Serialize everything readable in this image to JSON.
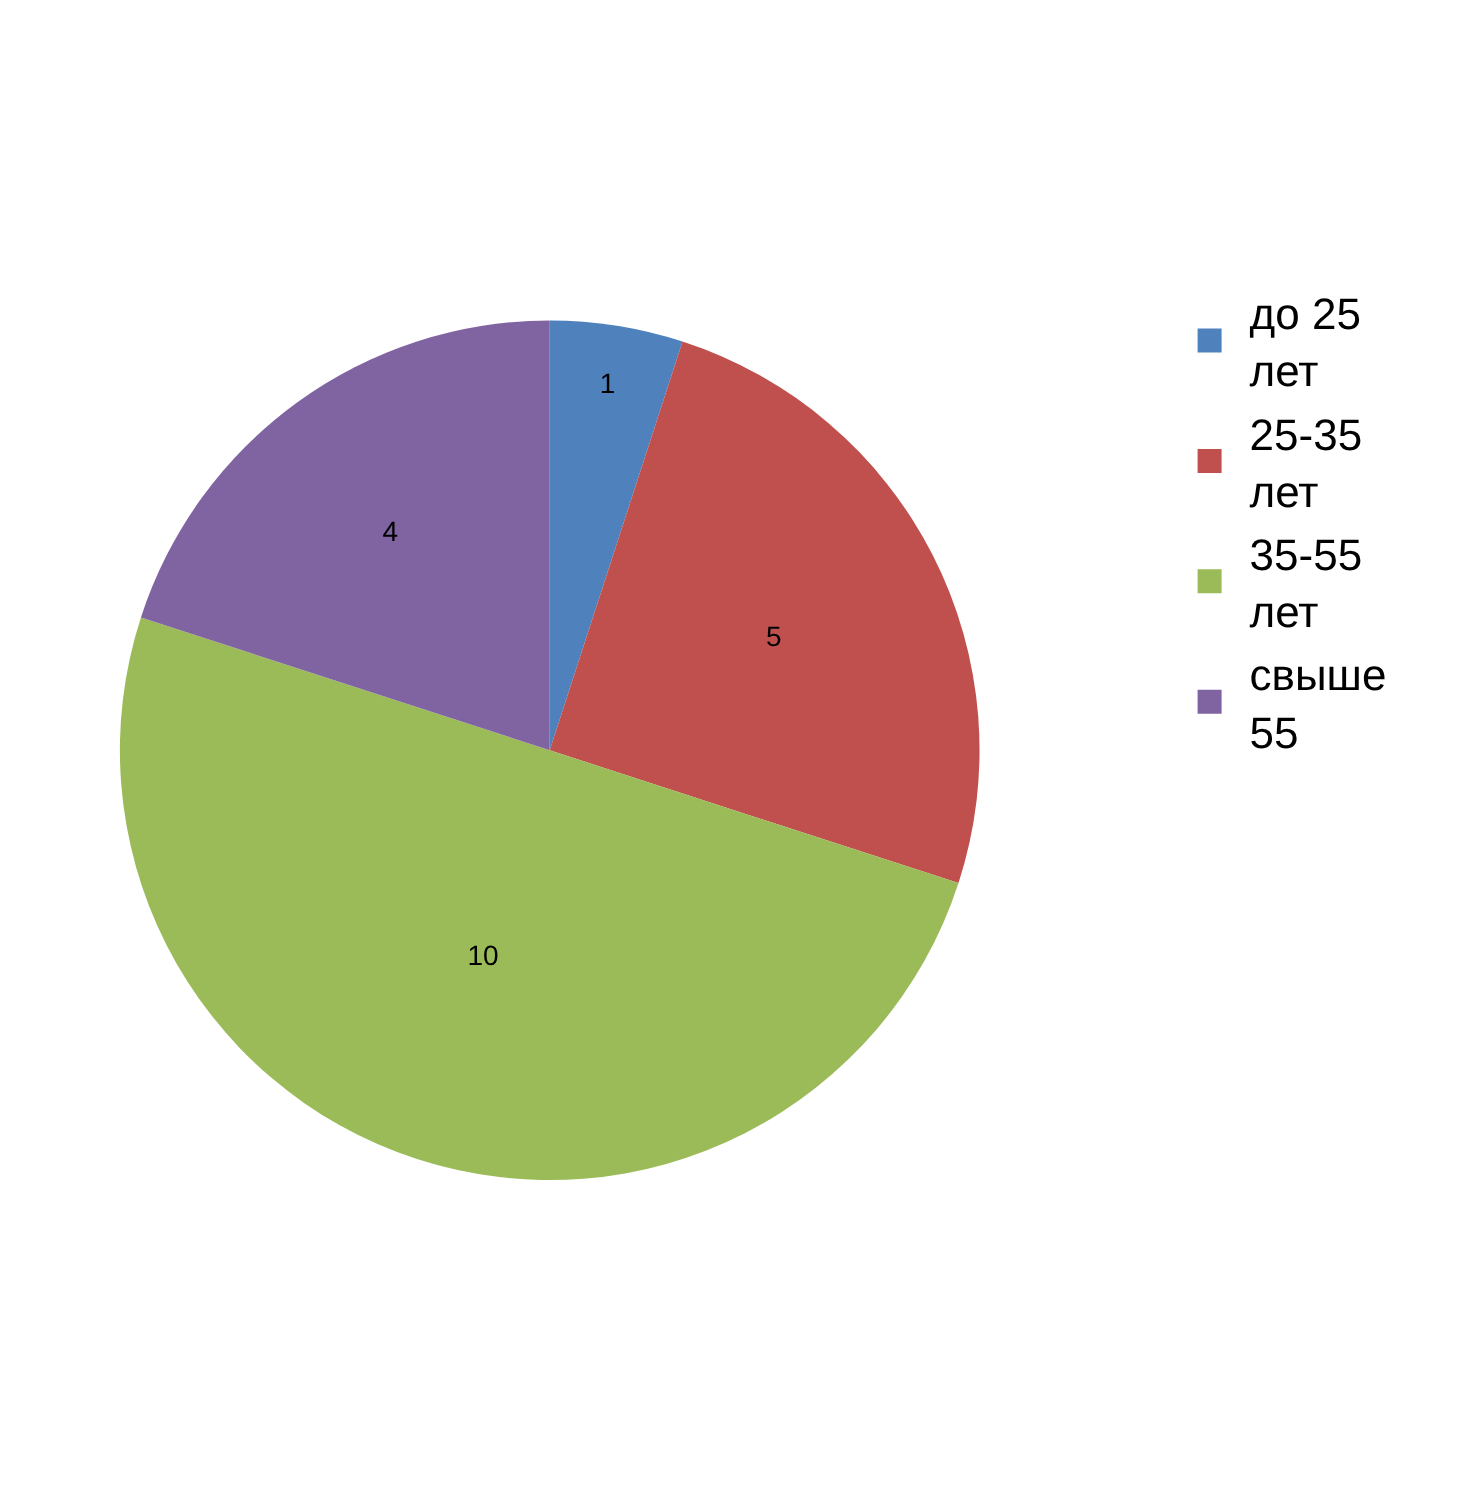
{
  "chart_data": {
    "type": "pie",
    "categories": [
      "до 25 лет",
      "25-35 лет",
      "35-55 лет",
      "свыше 55"
    ],
    "values": [
      1,
      5,
      10,
      4
    ],
    "colors": [
      "#4f81bd",
      "#c0504d",
      "#9bbb59",
      "#8064a2"
    ],
    "data_labels": true,
    "legend": "right"
  }
}
